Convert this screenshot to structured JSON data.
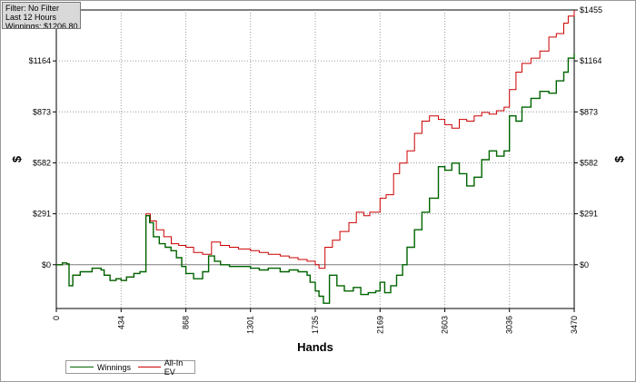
{
  "info": {
    "filter": "Filter: No Filter",
    "period": "Last  12 Hours",
    "winnings": "Winnings: $1206.80"
  },
  "chart_data": {
    "type": "line",
    "xlabel": "Hands",
    "ylabel": "$",
    "xlim": [
      0,
      3470
    ],
    "ylim": [
      -250,
      1455
    ],
    "x_ticks": [
      0,
      434,
      868,
      1301,
      1735,
      2169,
      2603,
      3036,
      3470
    ],
    "y_ticks": [
      0,
      291,
      582,
      873,
      1164,
      1455
    ],
    "y_tick_labels": [
      "$0",
      "$291",
      "$582",
      "$873",
      "$1164",
      "$1455"
    ],
    "grid": true,
    "legend_position": "bottom-left",
    "series": [
      {
        "name": "Winnings",
        "color": "#006400",
        "step": true,
        "points": [
          [
            0,
            0
          ],
          [
            40,
            10
          ],
          [
            70,
            5
          ],
          [
            85,
            -120
          ],
          [
            110,
            -60
          ],
          [
            160,
            -40
          ],
          [
            240,
            -20
          ],
          [
            300,
            -30
          ],
          [
            320,
            -60
          ],
          [
            360,
            -90
          ],
          [
            400,
            -80
          ],
          [
            434,
            -90
          ],
          [
            470,
            -70
          ],
          [
            520,
            -50
          ],
          [
            560,
            -40
          ],
          [
            600,
            280
          ],
          [
            625,
            240
          ],
          [
            650,
            160
          ],
          [
            690,
            120
          ],
          [
            730,
            100
          ],
          [
            768,
            80
          ],
          [
            805,
            40
          ],
          [
            840,
            -10
          ],
          [
            868,
            -50
          ],
          [
            920,
            -80
          ],
          [
            980,
            -40
          ],
          [
            1020,
            50
          ],
          [
            1060,
            20
          ],
          [
            1100,
            0
          ],
          [
            1160,
            -10
          ],
          [
            1220,
            -10
          ],
          [
            1301,
            -20
          ],
          [
            1360,
            -30
          ],
          [
            1420,
            -20
          ],
          [
            1500,
            -40
          ],
          [
            1560,
            -30
          ],
          [
            1620,
            -40
          ],
          [
            1680,
            -60
          ],
          [
            1700,
            -100
          ],
          [
            1735,
            -150
          ],
          [
            1760,
            -180
          ],
          [
            1790,
            -220
          ],
          [
            1830,
            -60
          ],
          [
            1880,
            -120
          ],
          [
            1930,
            -150
          ],
          [
            1990,
            -130
          ],
          [
            2040,
            -170
          ],
          [
            2090,
            -160
          ],
          [
            2140,
            -150
          ],
          [
            2169,
            -100
          ],
          [
            2200,
            -160
          ],
          [
            2240,
            -120
          ],
          [
            2280,
            -60
          ],
          [
            2320,
            0
          ],
          [
            2350,
            100
          ],
          [
            2400,
            200
          ],
          [
            2450,
            300
          ],
          [
            2500,
            380
          ],
          [
            2560,
            560
          ],
          [
            2603,
            540
          ],
          [
            2650,
            580
          ],
          [
            2700,
            520
          ],
          [
            2750,
            450
          ],
          [
            2800,
            500
          ],
          [
            2850,
            600
          ],
          [
            2900,
            650
          ],
          [
            2950,
            620
          ],
          [
            3000,
            650
          ],
          [
            3036,
            850
          ],
          [
            3080,
            820
          ],
          [
            3120,
            900
          ],
          [
            3180,
            950
          ],
          [
            3240,
            990
          ],
          [
            3300,
            980
          ],
          [
            3350,
            1050
          ],
          [
            3400,
            1100
          ],
          [
            3430,
            1180
          ],
          [
            3470,
            1206
          ]
        ]
      },
      {
        "name": "All-In EV",
        "color": "#cc0000",
        "step": true,
        "points": [
          [
            0,
            0
          ],
          [
            40,
            10
          ],
          [
            70,
            5
          ],
          [
            85,
            -120
          ],
          [
            110,
            -60
          ],
          [
            160,
            -40
          ],
          [
            240,
            -20
          ],
          [
            300,
            -30
          ],
          [
            320,
            -60
          ],
          [
            360,
            -90
          ],
          [
            400,
            -80
          ],
          [
            434,
            -90
          ],
          [
            470,
            -70
          ],
          [
            520,
            -50
          ],
          [
            560,
            -40
          ],
          [
            600,
            290
          ],
          [
            630,
            250
          ],
          [
            670,
            200
          ],
          [
            720,
            160
          ],
          [
            770,
            120
          ],
          [
            820,
            110
          ],
          [
            868,
            100
          ],
          [
            920,
            70
          ],
          [
            980,
            60
          ],
          [
            1040,
            130
          ],
          [
            1100,
            110
          ],
          [
            1160,
            100
          ],
          [
            1220,
            90
          ],
          [
            1301,
            80
          ],
          [
            1360,
            70
          ],
          [
            1420,
            60
          ],
          [
            1500,
            50
          ],
          [
            1560,
            40
          ],
          [
            1620,
            30
          ],
          [
            1680,
            20
          ],
          [
            1735,
            0
          ],
          [
            1760,
            -20
          ],
          [
            1800,
            100
          ],
          [
            1850,
            140
          ],
          [
            1900,
            190
          ],
          [
            1960,
            240
          ],
          [
            2010,
            300
          ],
          [
            2060,
            280
          ],
          [
            2100,
            300
          ],
          [
            2169,
            380
          ],
          [
            2210,
            400
          ],
          [
            2260,
            520
          ],
          [
            2300,
            580
          ],
          [
            2350,
            650
          ],
          [
            2400,
            750
          ],
          [
            2450,
            820
          ],
          [
            2500,
            850
          ],
          [
            2560,
            830
          ],
          [
            2603,
            800
          ],
          [
            2650,
            780
          ],
          [
            2700,
            830
          ],
          [
            2750,
            820
          ],
          [
            2800,
            850
          ],
          [
            2850,
            870
          ],
          [
            2900,
            860
          ],
          [
            2950,
            880
          ],
          [
            3000,
            900
          ],
          [
            3036,
            1000
          ],
          [
            3080,
            1100
          ],
          [
            3120,
            1150
          ],
          [
            3180,
            1180
          ],
          [
            3240,
            1220
          ],
          [
            3300,
            1300
          ],
          [
            3350,
            1320
          ],
          [
            3400,
            1380
          ],
          [
            3430,
            1420
          ],
          [
            3470,
            1455
          ]
        ]
      }
    ]
  }
}
